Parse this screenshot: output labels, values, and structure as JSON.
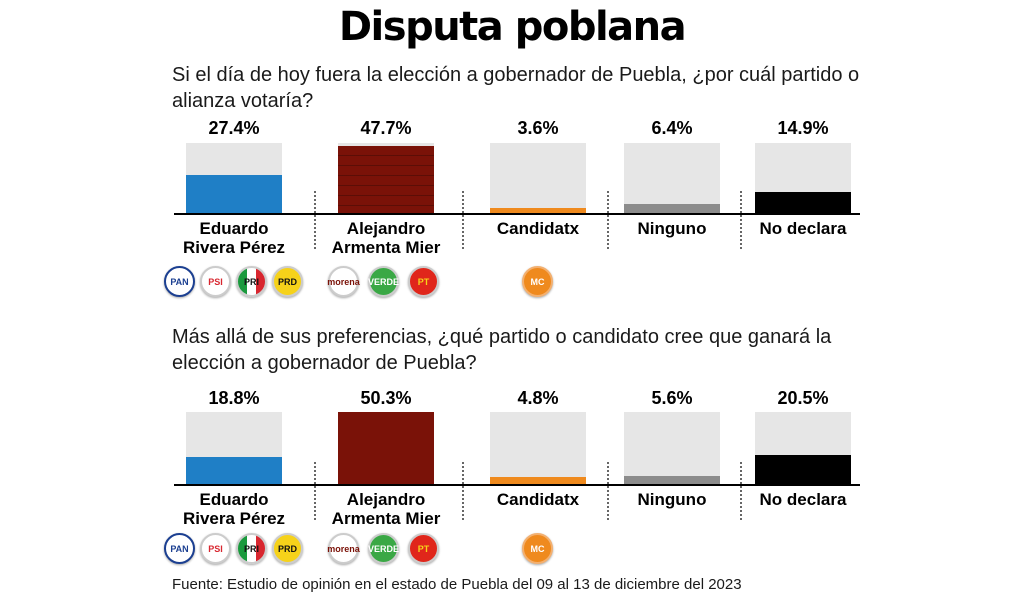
{
  "title": "Disputa poblana",
  "source": "Fuente: Estudio de opinión en el estado de Puebla del 09 al 13 de diciembre del 2023",
  "logos": {
    "pan": "PAN",
    "psi": "PSI",
    "pri": "PRI",
    "prd": "PRD",
    "morena": "morena",
    "verde": "VERDE",
    "pt": "PT",
    "mc": "MC"
  },
  "colors": {
    "eduardo": "#1f7fc6",
    "alejandro": "#7a1208",
    "candidatx": "#ef8a1e",
    "ninguno": "#8c8c8c",
    "no_declara": "#000000",
    "background": "#e6e6e6"
  },
  "chart_data": [
    {
      "type": "bar",
      "title": "Si el día de hoy fuera la elección a gobernador de Puebla, ¿por cuál partido o alianza votaría?",
      "categories": [
        "Eduardo Rivera Pérez",
        "Alejandro Armenta Mier",
        "Candidatx",
        "Ninguno",
        "No declara"
      ],
      "values": [
        27.4,
        47.7,
        3.6,
        6.4,
        14.9
      ],
      "value_labels": [
        "27.4%",
        "47.7%",
        "3.6%",
        "6.4%",
        "14.9%"
      ],
      "ylim": [
        0,
        50
      ]
    },
    {
      "type": "bar",
      "title": "Más allá de sus preferencias, ¿qué partido o candidato cree que ganará la elección a gobernador de Puebla?",
      "categories": [
        "Eduardo Rivera Pérez",
        "Alejandro Armenta Mier",
        "Candidatx",
        "Ninguno",
        "No declara"
      ],
      "values": [
        18.8,
        50.3,
        4.8,
        5.6,
        20.5
      ],
      "value_labels": [
        "18.8%",
        "50.3%",
        "4.8%",
        "5.6%",
        "20.5%"
      ],
      "ylim": [
        0,
        50.3
      ]
    }
  ],
  "labels": {
    "eduardo": [
      "Eduardo",
      "Rivera Pérez"
    ],
    "alejandro": [
      "Alejandro",
      "Armenta Mier"
    ],
    "candidatx": "Candidatx",
    "ninguno": "Ninguno",
    "no_declara": "No declara"
  }
}
